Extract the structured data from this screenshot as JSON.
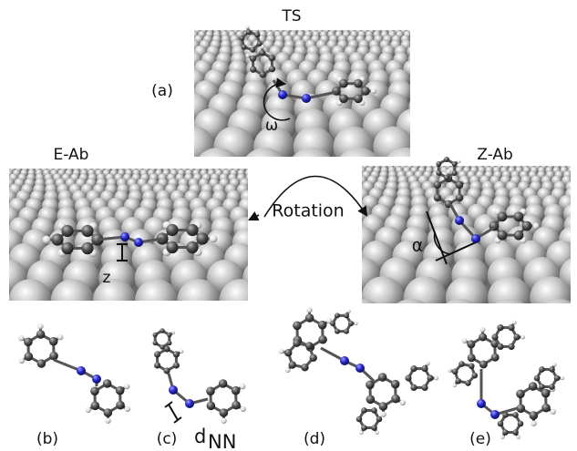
{
  "labels": {
    "ts": "TS",
    "a": "(a)",
    "omega": "ω",
    "e_ab": "E-Ab",
    "z_ab": "Z-Ab",
    "rotation": "Rotation",
    "z": "z",
    "alpha": "α",
    "b": "(b)",
    "c": "(c)",
    "d_nn": {
      "main": "d",
      "sub": "NN"
    },
    "d": "(d)",
    "e": "(e)"
  }
}
